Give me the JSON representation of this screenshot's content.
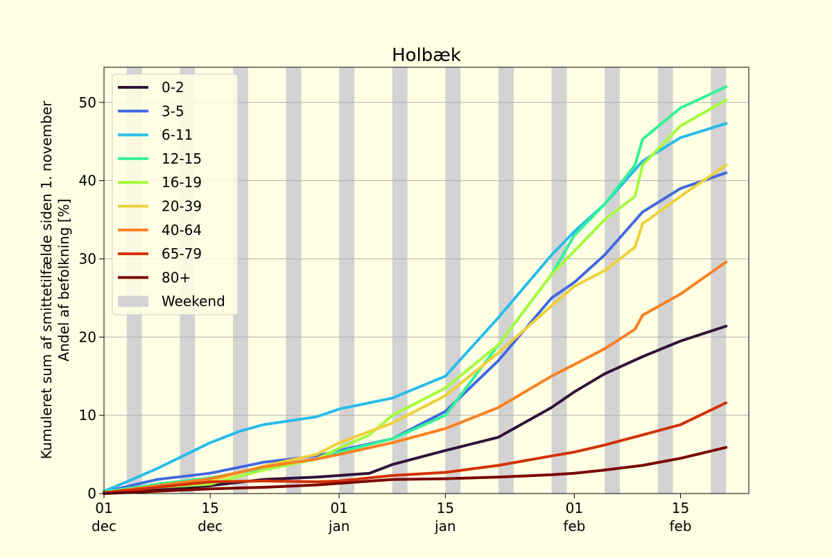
{
  "chart_data": {
    "type": "line",
    "title": "Holbæk",
    "ylabel_lines": [
      "Kumuleret sum af smittetilfælde siden 1. november",
      "Andel af befolkning [%]"
    ],
    "xlabel": "",
    "x_start": "2021-12-01",
    "x_end": "2022-02-24",
    "ylim": [
      0,
      54.5
    ],
    "yticks": [
      0,
      10,
      20,
      30,
      40,
      50
    ],
    "xticks": [
      {
        "date": "2021-12-01",
        "day": "01",
        "month": "dec"
      },
      {
        "date": "2021-12-15",
        "day": "15",
        "month": "dec"
      },
      {
        "date": "2022-01-01",
        "day": "01",
        "month": "jan"
      },
      {
        "date": "2022-01-15",
        "day": "15",
        "month": "jan"
      },
      {
        "date": "2022-02-01",
        "day": "01",
        "month": "feb"
      },
      {
        "date": "2022-02-15",
        "day": "15",
        "month": "feb"
      }
    ],
    "grid_y": true,
    "legend_position": "upper left",
    "weekend_label": "Weekend",
    "weekends": [
      [
        "2021-12-04",
        "2021-12-05"
      ],
      [
        "2021-12-11",
        "2021-12-12"
      ],
      [
        "2021-12-18",
        "2021-12-19"
      ],
      [
        "2021-12-25",
        "2021-12-26"
      ],
      [
        "2022-01-01",
        "2022-01-02"
      ],
      [
        "2022-01-08",
        "2022-01-09"
      ],
      [
        "2022-01-15",
        "2022-01-16"
      ],
      [
        "2022-01-22",
        "2022-01-23"
      ],
      [
        "2022-01-29",
        "2022-01-30"
      ],
      [
        "2022-02-05",
        "2022-02-06"
      ],
      [
        "2022-02-12",
        "2022-02-13"
      ],
      [
        "2022-02-19",
        "2022-02-20"
      ],
      [
        "2022-02-26",
        "2022-02-27"
      ]
    ],
    "series": [
      {
        "name": "0-2",
        "color": "#30123b",
        "points": [
          [
            "2021-12-01",
            0.1
          ],
          [
            "2021-12-08",
            0.5
          ],
          [
            "2021-12-15",
            1.0
          ],
          [
            "2021-12-22",
            1.8
          ],
          [
            "2021-12-29",
            2.1
          ],
          [
            "2022-01-01",
            2.3
          ],
          [
            "2022-01-05",
            2.6
          ],
          [
            "2022-01-08",
            3.7
          ],
          [
            "2022-01-15",
            5.5
          ],
          [
            "2022-01-22",
            7.2
          ],
          [
            "2022-01-29",
            11.0
          ],
          [
            "2022-02-01",
            13.0
          ],
          [
            "2022-02-05",
            15.3
          ],
          [
            "2022-02-10",
            17.5
          ],
          [
            "2022-02-15",
            19.5
          ],
          [
            "2022-02-21",
            21.4
          ]
        ]
      },
      {
        "name": "3-5",
        "color": "#4169e1",
        "points": [
          [
            "2021-12-01",
            0.2
          ],
          [
            "2021-12-08",
            1.8
          ],
          [
            "2021-12-15",
            2.6
          ],
          [
            "2021-12-22",
            4.0
          ],
          [
            "2021-12-29",
            4.8
          ],
          [
            "2022-01-01",
            5.5
          ],
          [
            "2022-01-08",
            7.0
          ],
          [
            "2022-01-15",
            10.5
          ],
          [
            "2022-01-22",
            17.0
          ],
          [
            "2022-01-29",
            25.0
          ],
          [
            "2022-02-01",
            27.0
          ],
          [
            "2022-02-05",
            30.5
          ],
          [
            "2022-02-10",
            36.0
          ],
          [
            "2022-02-15",
            39.0
          ],
          [
            "2022-02-21",
            41.0
          ]
        ]
      },
      {
        "name": "6-11",
        "color": "#28bceb",
        "points": [
          [
            "2021-12-01",
            0.3
          ],
          [
            "2021-12-04",
            1.5
          ],
          [
            "2021-12-08",
            3.2
          ],
          [
            "2021-12-15",
            6.5
          ],
          [
            "2021-12-19",
            8.0
          ],
          [
            "2021-12-22",
            8.8
          ],
          [
            "2021-12-29",
            9.8
          ],
          [
            "2022-01-01",
            10.8
          ],
          [
            "2022-01-08",
            12.2
          ],
          [
            "2022-01-15",
            15.0
          ],
          [
            "2022-01-22",
            22.5
          ],
          [
            "2022-01-29",
            30.5
          ],
          [
            "2022-02-01",
            33.5
          ],
          [
            "2022-02-05",
            37.0
          ],
          [
            "2022-02-10",
            42.5
          ],
          [
            "2022-02-15",
            45.5
          ],
          [
            "2022-02-21",
            47.3
          ]
        ]
      },
      {
        "name": "12-15",
        "color": "#32f298",
        "points": [
          [
            "2021-12-01",
            0.2
          ],
          [
            "2021-12-08",
            1.2
          ],
          [
            "2021-12-15",
            2.0
          ],
          [
            "2021-12-22",
            3.2
          ],
          [
            "2021-12-29",
            4.4
          ],
          [
            "2022-01-01",
            5.3
          ],
          [
            "2022-01-08",
            7.0
          ],
          [
            "2022-01-15",
            10.0
          ],
          [
            "2022-01-22",
            19.0
          ],
          [
            "2022-01-29",
            28.0
          ],
          [
            "2022-02-01",
            33.0
          ],
          [
            "2022-02-05",
            37.0
          ],
          [
            "2022-02-09",
            42.0
          ],
          [
            "2022-02-10",
            45.3
          ],
          [
            "2022-02-15",
            49.3
          ],
          [
            "2022-02-21",
            52.0
          ]
        ]
      },
      {
        "name": "16-19",
        "color": "#a4fc3c",
        "points": [
          [
            "2021-12-01",
            0.1
          ],
          [
            "2021-12-08",
            0.8
          ],
          [
            "2021-12-15",
            1.2
          ],
          [
            "2021-12-22",
            3.0
          ],
          [
            "2021-12-29",
            4.4
          ],
          [
            "2022-01-01",
            5.8
          ],
          [
            "2022-01-05",
            7.5
          ],
          [
            "2022-01-08",
            10.0
          ],
          [
            "2022-01-15",
            13.5
          ],
          [
            "2022-01-22",
            19.0
          ],
          [
            "2022-01-29",
            28.0
          ],
          [
            "2022-02-01",
            31.0
          ],
          [
            "2022-02-05",
            35.0
          ],
          [
            "2022-02-09",
            38.0
          ],
          [
            "2022-02-10",
            42.0
          ],
          [
            "2022-02-15",
            47.0
          ],
          [
            "2022-02-21",
            50.3
          ]
        ]
      },
      {
        "name": "20-39",
        "color": "#eecf3a",
        "points": [
          [
            "2021-12-01",
            0.1
          ],
          [
            "2021-12-08",
            0.9
          ],
          [
            "2021-12-15",
            1.6
          ],
          [
            "2021-12-22",
            3.5
          ],
          [
            "2021-12-29",
            5.0
          ],
          [
            "2022-01-01",
            6.5
          ],
          [
            "2022-01-08",
            9.0
          ],
          [
            "2022-01-15",
            12.5
          ],
          [
            "2022-01-22",
            18.0
          ],
          [
            "2022-01-29",
            24.0
          ],
          [
            "2022-02-01",
            26.5
          ],
          [
            "2022-02-05",
            28.5
          ],
          [
            "2022-02-09",
            31.5
          ],
          [
            "2022-02-10",
            34.5
          ],
          [
            "2022-02-15",
            38.0
          ],
          [
            "2022-02-21",
            42.0
          ]
        ]
      },
      {
        "name": "40-64",
        "color": "#fb8022",
        "points": [
          [
            "2021-12-01",
            0.1
          ],
          [
            "2021-12-08",
            1.0
          ],
          [
            "2021-12-15",
            1.9
          ],
          [
            "2021-12-22",
            3.4
          ],
          [
            "2021-12-29",
            4.4
          ],
          [
            "2022-01-01",
            5.0
          ],
          [
            "2022-01-08",
            6.5
          ],
          [
            "2022-01-15",
            8.3
          ],
          [
            "2022-01-22",
            11.0
          ],
          [
            "2022-01-29",
            15.0
          ],
          [
            "2022-02-01",
            16.5
          ],
          [
            "2022-02-05",
            18.5
          ],
          [
            "2022-02-09",
            21.0
          ],
          [
            "2022-02-10",
            22.8
          ],
          [
            "2022-02-15",
            25.5
          ],
          [
            "2022-02-21",
            29.6
          ]
        ]
      },
      {
        "name": "65-79",
        "color": "#d23105",
        "points": [
          [
            "2021-12-01",
            0.1
          ],
          [
            "2021-12-08",
            0.8
          ],
          [
            "2021-12-15",
            1.5
          ],
          [
            "2021-12-22",
            1.6
          ],
          [
            "2021-12-29",
            1.5
          ],
          [
            "2022-01-01",
            1.6
          ],
          [
            "2022-01-08",
            2.3
          ],
          [
            "2022-01-15",
            2.7
          ],
          [
            "2022-01-22",
            3.6
          ],
          [
            "2022-01-29",
            4.8
          ],
          [
            "2022-02-01",
            5.3
          ],
          [
            "2022-02-05",
            6.2
          ],
          [
            "2022-02-10",
            7.5
          ],
          [
            "2022-02-15",
            8.8
          ],
          [
            "2022-02-21",
            11.6
          ]
        ]
      },
      {
        "name": "80+",
        "color": "#7a0403",
        "points": [
          [
            "2021-12-01",
            0.0
          ],
          [
            "2021-12-08",
            0.3
          ],
          [
            "2021-12-15",
            0.6
          ],
          [
            "2021-12-22",
            0.8
          ],
          [
            "2021-12-29",
            1.1
          ],
          [
            "2022-01-01",
            1.3
          ],
          [
            "2022-01-08",
            1.8
          ],
          [
            "2022-01-15",
            1.9
          ],
          [
            "2022-01-22",
            2.1
          ],
          [
            "2022-01-29",
            2.4
          ],
          [
            "2022-02-01",
            2.6
          ],
          [
            "2022-02-05",
            3.0
          ],
          [
            "2022-02-10",
            3.6
          ],
          [
            "2022-02-15",
            4.5
          ],
          [
            "2022-02-21",
            5.9
          ]
        ]
      }
    ]
  }
}
